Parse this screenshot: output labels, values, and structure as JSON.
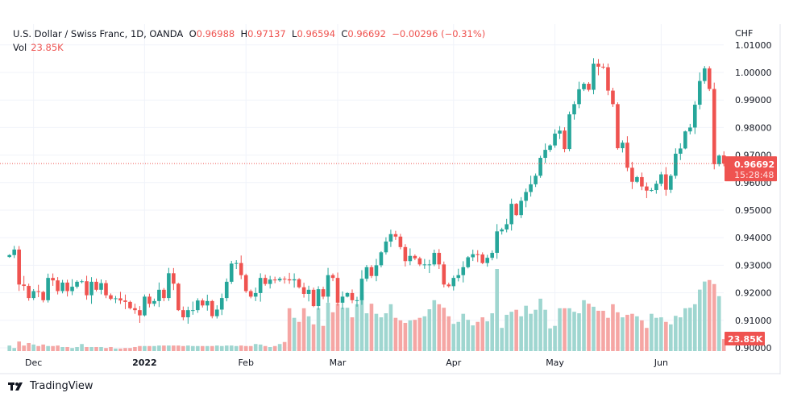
{
  "header": {
    "symbol": "U.S. Dollar / Swiss Franc, 1D, OANDA",
    "o_label": "O",
    "o": "0.96988",
    "h_label": "H",
    "h": "0.97137",
    "l_label": "L",
    "l": "0.96594",
    "c_label": "C",
    "c": "0.96692",
    "change": "−0.00296 (−0.31%)",
    "vol_label": "Vol",
    "vol": "23.85K"
  },
  "branding": {
    "name": "TradingView"
  },
  "colors": {
    "up": "#26a69a",
    "down": "#ef5350",
    "up_vol": "#9fd6d0",
    "down_vol": "#f5a6a4"
  },
  "chart_data": {
    "type": "candlestick",
    "title": "U.S. Dollar / Swiss Franc, 1D, OANDA",
    "currency_label": "CHF",
    "ylim": [
      0.9,
      1.01
    ],
    "y_ticks": [
      "1.01000",
      "1.00000",
      "0.99000",
      "0.98000",
      "0.97000",
      "0.96000",
      "0.95000",
      "0.94000",
      "0.93000",
      "0.92000",
      "0.91000",
      "0.90000"
    ],
    "x_ticks": [
      {
        "label": "Dec",
        "bar": 5
      },
      {
        "label": "2022",
        "bar": 28
      },
      {
        "label": "Feb",
        "bar": 49
      },
      {
        "label": "Mar",
        "bar": 68
      },
      {
        "label": "Apr",
        "bar": 92
      },
      {
        "label": "May",
        "bar": 113
      },
      {
        "label": "Jun",
        "bar": 135
      }
    ],
    "first_open": 0.933,
    "close": [
      0.9337,
      0.9357,
      0.923,
      0.9225,
      0.9181,
      0.9206,
      0.9203,
      0.9173,
      0.9254,
      0.9245,
      0.9206,
      0.9237,
      0.9206,
      0.9222,
      0.924,
      0.9242,
      0.9191,
      0.924,
      0.9211,
      0.9235,
      0.9191,
      0.9178,
      0.918,
      0.9172,
      0.9167,
      0.9144,
      0.9137,
      0.9118,
      0.9186,
      0.916,
      0.917,
      0.9211,
      0.9181,
      0.9271,
      0.9233,
      0.9137,
      0.9111,
      0.9137,
      0.9137,
      0.9172,
      0.9154,
      0.917,
      0.9115,
      0.9139,
      0.9181,
      0.924,
      0.9306,
      0.9308,
      0.9264,
      0.9206,
      0.9186,
      0.9199,
      0.9254,
      0.9232,
      0.9248,
      0.9245,
      0.9251,
      0.9249,
      0.9245,
      0.9249,
      0.922,
      0.9196,
      0.9211,
      0.9152,
      0.9213,
      0.9186,
      0.9264,
      0.9254,
      0.9164,
      0.9186,
      0.9199,
      0.9173,
      0.9173,
      0.9251,
      0.9293,
      0.9261,
      0.93,
      0.9347,
      0.9386,
      0.9413,
      0.9404,
      0.9366,
      0.9315,
      0.9334,
      0.9325,
      0.9303,
      0.9303,
      0.9303,
      0.9345,
      0.9303,
      0.923,
      0.9224,
      0.9254,
      0.9264,
      0.9293,
      0.9329,
      0.934,
      0.9339,
      0.9308,
      0.9327,
      0.9345,
      0.9423,
      0.943,
      0.9449,
      0.9523,
      0.9482,
      0.9534,
      0.9566,
      0.9594,
      0.9625,
      0.969,
      0.9719,
      0.9735,
      0.9778,
      0.9789,
      0.9722,
      0.9848,
      0.9885,
      0.9939,
      0.9959,
      0.9937,
      1.0032,
      1.0021,
      1.0019,
      0.9934,
      0.9885,
      0.9725,
      0.9745,
      0.9654,
      0.9603,
      0.962,
      0.9586,
      0.9571,
      0.9573,
      0.9596,
      0.963,
      0.9574,
      0.9625,
      0.9705,
      0.9724,
      0.9786,
      0.98,
      0.9883,
      0.9969,
      1.0015,
      0.994,
      0.9667,
      0.9698,
      0.96692
    ],
    "last_bar": {
      "open": 0.96988,
      "high": 0.97137,
      "low": 0.96594,
      "close": 0.96692
    },
    "volume_k": [
      11,
      6,
      19,
      11,
      16,
      13,
      10,
      13,
      10,
      10,
      11,
      8,
      8,
      6,
      8,
      14,
      8,
      8,
      8,
      8,
      6,
      8,
      5,
      5,
      6,
      6,
      8,
      10,
      10,
      10,
      10,
      11,
      11,
      11,
      11,
      11,
      10,
      11,
      10,
      10,
      10,
      10,
      10,
      11,
      10,
      11,
      11,
      10,
      11,
      10,
      10,
      14,
      13,
      10,
      8,
      10,
      14,
      18,
      85,
      66,
      58,
      85,
      69,
      53,
      85,
      50,
      96,
      77,
      94,
      86,
      86,
      67,
      93,
      112,
      75,
      94,
      74,
      67,
      75,
      93,
      66,
      61,
      56,
      61,
      62,
      66,
      69,
      83,
      101,
      93,
      86,
      69,
      54,
      58,
      74,
      62,
      51,
      58,
      67,
      59,
      75,
      163,
      46,
      72,
      78,
      82,
      69,
      90,
      74,
      82,
      104,
      82,
      45,
      50,
      85,
      85,
      85,
      78,
      75,
      101,
      94,
      88,
      80,
      80,
      66,
      93,
      77,
      67,
      72,
      74,
      69,
      61,
      46,
      74,
      66,
      67,
      58,
      53,
      70,
      67,
      85,
      86,
      93,
      122,
      138,
      141,
      133,
      109,
      23.85
    ],
    "last_price_label": "0.96692",
    "countdown": "15:28:48",
    "last_volume_label": "23.85K"
  }
}
